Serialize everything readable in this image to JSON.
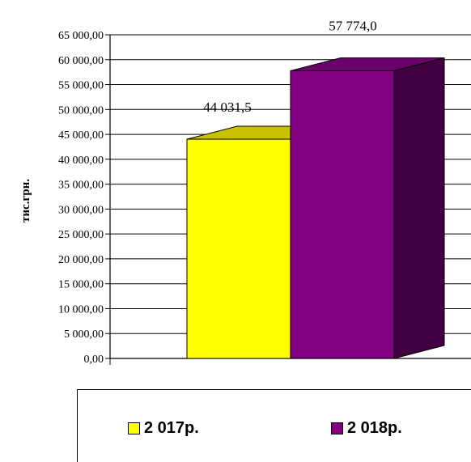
{
  "chart_data": {
    "type": "bar",
    "bar_style": "3d",
    "categories": [
      "2 017р.",
      "2 018р."
    ],
    "values": [
      44031.5,
      57774.0
    ],
    "data_labels": [
      "44 031,5",
      "57 774,0"
    ],
    "ylabel": "тис.грн.",
    "ylim": [
      0,
      65000
    ],
    "yticks": [
      0,
      5000,
      10000,
      15000,
      20000,
      25000,
      30000,
      35000,
      40000,
      45000,
      50000,
      55000,
      60000,
      65000
    ],
    "ytick_labels": [
      "0,00",
      "5 000,00",
      "10 000,00",
      "15 000,00",
      "20 000,00",
      "25 000,00",
      "30 000,00",
      "35 000,00",
      "40 000,00",
      "45 000,00",
      "50 000,00",
      "55 000,00",
      "60 000,00",
      "65 000,00"
    ],
    "grid": true,
    "legend_position": "bottom",
    "colors": {
      "bar1_front": "#ffff00",
      "bar1_top": "#c8c000",
      "bar1_side": "#a8a000",
      "bar2_front": "#800080",
      "bar2_top": "#6a006a",
      "bar2_side": "#420042"
    }
  },
  "legend": {
    "items": [
      {
        "label": "2 017р.",
        "color": "#ffff00"
      },
      {
        "label": "2 018р.",
        "color": "#800080"
      }
    ]
  }
}
